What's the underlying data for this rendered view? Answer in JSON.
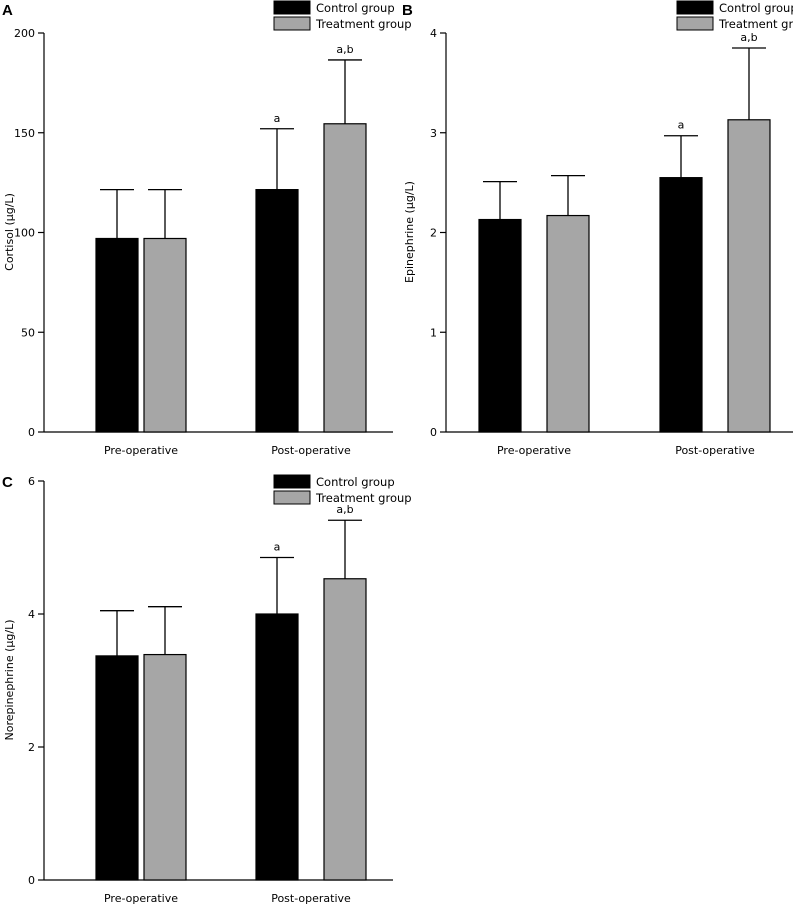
{
  "colors": {
    "control": "#000000",
    "treatment": "#a6a6a6"
  },
  "chart_data": [
    {
      "panel": "A",
      "type": "bar",
      "categories": [
        "Pre-operative",
        "Post-operative"
      ],
      "series": [
        {
          "name": "Control group",
          "values": [
            97,
            121.5
          ],
          "errors": [
            24.5,
            30.5
          ]
        },
        {
          "name": "Treatment group",
          "values": [
            97,
            154.5
          ],
          "errors": [
            24.5,
            32
          ]
        }
      ],
      "annotations": [
        {
          "category": 1,
          "series": 0,
          "text": "a"
        },
        {
          "category": 1,
          "series": 1,
          "text": "a,b"
        }
      ],
      "ylabel": "Cortisol (μg/L)",
      "ylim": [
        0,
        200
      ],
      "yticks": [
        "0",
        "50",
        "100",
        "150",
        "200"
      ],
      "yticks_values": [
        0,
        50,
        100,
        150,
        200
      ],
      "legend": "top-right"
    },
    {
      "panel": "B",
      "type": "bar",
      "categories": [
        "Pre-operative",
        "Post-operative"
      ],
      "series": [
        {
          "name": "Control group",
          "values": [
            2.13,
            2.55
          ],
          "errors": [
            0.38,
            0.42
          ]
        },
        {
          "name": "Treatment group",
          "values": [
            2.17,
            3.13
          ],
          "errors": [
            0.4,
            0.72
          ]
        }
      ],
      "annotations": [
        {
          "category": 1,
          "series": 0,
          "text": "a"
        },
        {
          "category": 1,
          "series": 1,
          "text": "a,b"
        }
      ],
      "ylabel": "Epinephrine (μg/L)",
      "ylim": [
        0,
        4
      ],
      "yticks": [
        "0",
        "1",
        "2",
        "3",
        "4"
      ],
      "yticks_values": [
        0,
        1,
        2,
        3,
        4
      ],
      "legend": "top-right"
    },
    {
      "panel": "C",
      "type": "bar",
      "categories": [
        "Pre-operative",
        "Post-operative"
      ],
      "series": [
        {
          "name": "Control group",
          "values": [
            3.37,
            4.0
          ],
          "errors": [
            0.68,
            0.85
          ]
        },
        {
          "name": "Treatment group",
          "values": [
            3.39,
            4.53
          ],
          "errors": [
            0.72,
            0.88
          ]
        }
      ],
      "annotations": [
        {
          "category": 1,
          "series": 0,
          "text": "a"
        },
        {
          "category": 1,
          "series": 1,
          "text": "a,b"
        }
      ],
      "ylabel": "Norepinephrine (μg/L)",
      "ylim": [
        0,
        6
      ],
      "yticks": [
        "0",
        "2",
        "4",
        "6"
      ],
      "yticks_values": [
        0,
        2,
        4,
        6
      ],
      "legend": "top-right"
    }
  ]
}
